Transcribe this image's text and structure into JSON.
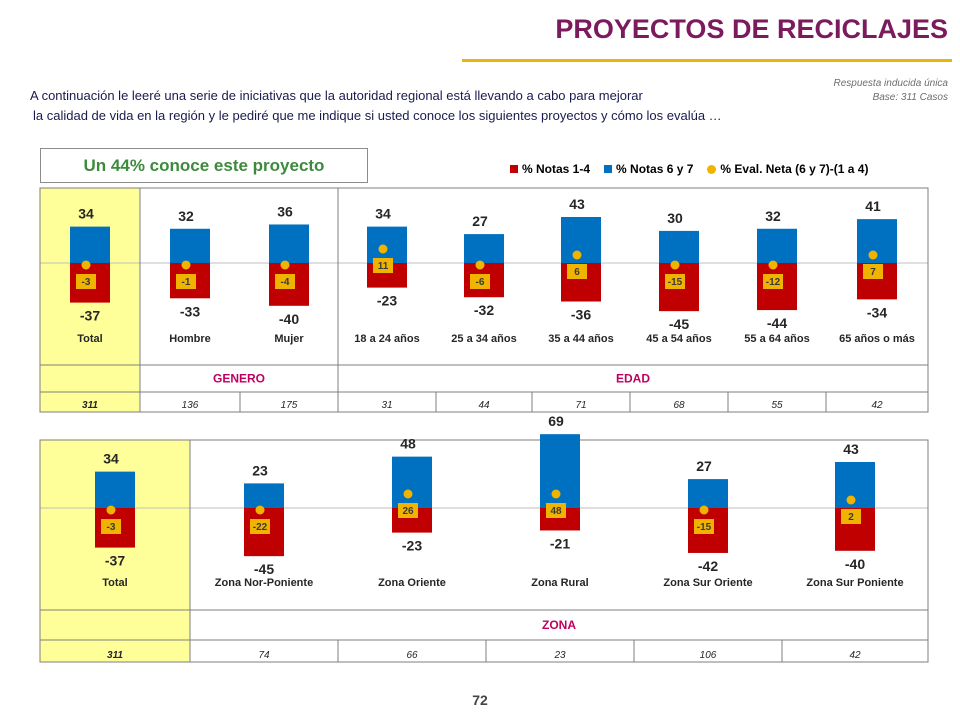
{
  "title": "PROYECTOS DE RECICLAJES",
  "note": [
    "Respuesta inducida única",
    "Base: 311 Casos"
  ],
  "intro": [
    "A continuación le leeré una serie de iniciativas que la autoridad regional está llevando a cabo para mejorar",
    "la calidad de vida en la región y le pediré que me indique si usted conoce los siguientes proyectos y cómo los evalúa …"
  ],
  "callout": "Un 44% conoce este proyecto",
  "legend": [
    {
      "label": "% Notas 1-4",
      "color": "#c00000",
      "shape": "square"
    },
    {
      "label": "% Notas 6 y 7",
      "color": "#0070c0",
      "shape": "square"
    },
    {
      "label": "% Eval. Neta (6 y 7)-(1 a 4)",
      "color": "#f0b400",
      "shape": "dot"
    }
  ],
  "colors": {
    "negative": "#c00000",
    "positive": "#0070c0",
    "net_dot": "#f0b400",
    "net_box": "#f0b400",
    "total_bg": "#ffff99",
    "group_label": "#c00060"
  },
  "page_number": "72",
  "chart_data": [
    {
      "type": "bar",
      "categories": [
        "Total",
        "Hombre",
        "Mujer",
        "18 a 24 años",
        "25 a 34 años",
        "35 a 44 años",
        "45 a 54 años",
        "55 a 64 años",
        "65 años o más"
      ],
      "series": [
        {
          "name": "% Notas 1-4",
          "values": [
            -37,
            -33,
            -40,
            -23,
            -32,
            -36,
            -45,
            -44,
            -34
          ]
        },
        {
          "name": "% Notas 6 y 7",
          "values": [
            34,
            32,
            36,
            34,
            27,
            43,
            30,
            32,
            41
          ]
        },
        {
          "name": "% Eval. Neta (6 y 7)-(1 a 4)",
          "values": [
            -3,
            -1,
            -4,
            11,
            -6,
            6,
            -15,
            -12,
            7
          ]
        }
      ],
      "groups": [
        {
          "label": "",
          "span": [
            0,
            0
          ]
        },
        {
          "label": "GENERO",
          "span": [
            1,
            2
          ]
        },
        {
          "label": "EDAD",
          "span": [
            3,
            8
          ]
        }
      ],
      "bases": [
        311,
        136,
        175,
        31,
        44,
        71,
        68,
        55,
        42
      ]
    },
    {
      "type": "bar",
      "categories": [
        "Total",
        "Zona Nor-Poniente",
        "Zona Oriente",
        "Zona Rural",
        "Zona Sur Oriente",
        "Zona Sur Poniente"
      ],
      "series": [
        {
          "name": "% Notas 1-4",
          "values": [
            -37,
            -45,
            -23,
            -21,
            -42,
            -40
          ]
        },
        {
          "name": "% Notas 6 y 7",
          "values": [
            34,
            23,
            48,
            69,
            27,
            43
          ]
        },
        {
          "name": "% Eval. Neta (6 y 7)-(1 a 4)",
          "values": [
            -3,
            -22,
            26,
            48,
            -15,
            2
          ]
        }
      ],
      "groups": [
        {
          "label": "",
          "span": [
            0,
            0
          ]
        },
        {
          "label": "ZONA",
          "span": [
            1,
            5
          ]
        }
      ],
      "bases": [
        311,
        74,
        66,
        23,
        106,
        42
      ]
    }
  ]
}
